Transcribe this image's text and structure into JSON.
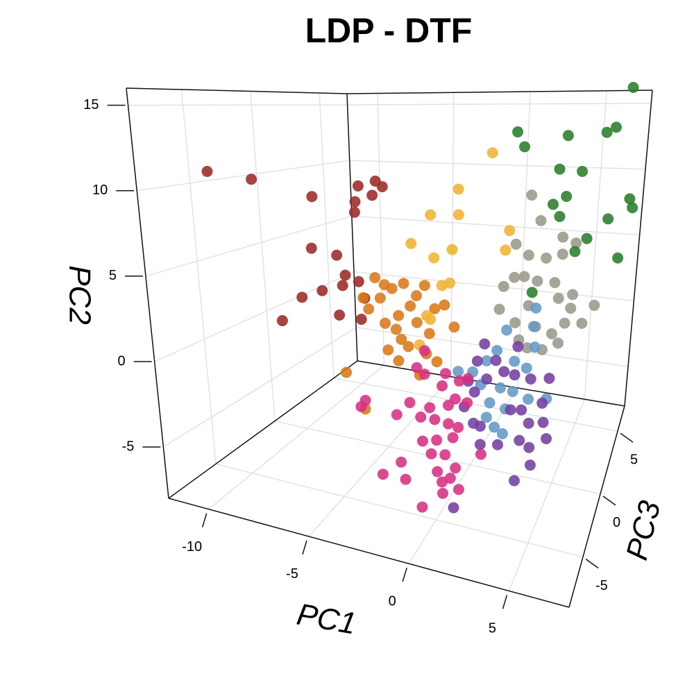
{
  "chart_data": {
    "type": "scatter3d",
    "title": "LDP - DTF",
    "xlabel": "PC1",
    "ylabel": "PC2",
    "zlabel": "PC3",
    "xlim": [
      -12,
      8
    ],
    "ylim": [
      -8,
      16
    ],
    "zlim": [
      -9,
      7
    ],
    "xticks": [
      -10,
      -5,
      0,
      5
    ],
    "yticks": [
      -5,
      0,
      5,
      10,
      15
    ],
    "zticks": [
      -5,
      0,
      5
    ],
    "grid": true,
    "series": [
      {
        "color": "#9b2a27",
        "x": [
          -10.7,
          -8.9,
          -6.4,
          -4.5,
          -3.8,
          -3.5,
          -4.6,
          -3.9,
          -4.6,
          -6.4,
          -5.3,
          -4.9,
          -5.0,
          -4.3,
          -5.9,
          -6.8,
          -7.7,
          -5.1,
          -4.1,
          -4.0
        ],
        "y": [
          10.9,
          10.5,
          9.6,
          10.3,
          10.6,
          10.3,
          9.4,
          9.8,
          8.8,
          6.6,
          6.3,
          5.2,
          4.6,
          4.9,
          4.2,
          3.7,
          2.2,
          2.9,
          2.8,
          4.0
        ],
        "z": [
          -6,
          -6,
          -6,
          -6,
          -6,
          -6,
          -6,
          -6,
          -6,
          -6,
          -6,
          -6,
          -6,
          -6,
          -6,
          -6,
          -6,
          -6,
          -6,
          -6
        ]
      },
      {
        "color": "#d9791a",
        "x": [
          -6.1,
          -5.8,
          -5.2,
          -4.6,
          -4.0,
          -3.3,
          -2.9,
          -3.6,
          -4.2,
          -4.9,
          -4.3,
          -3.2,
          -2.3,
          -1.8,
          -1.2,
          -2.5,
          -4.0,
          -4.7,
          -4.1,
          -2.6,
          -2.0,
          -3.6,
          -5.5,
          -7.0,
          -5.9,
          -2.9,
          -5.0
        ],
        "y": [
          2.2,
          1.5,
          2.3,
          3.0,
          3.4,
          2.7,
          3.4,
          2.0,
          1.3,
          0.7,
          0.4,
          1.0,
          2.0,
          2.3,
          1.0,
          0.4,
          -0.2,
          -1.0,
          -1.6,
          -0.9,
          -1.3,
          -0.6,
          3.6,
          -2.9,
          -5.1,
          -2.3,
          3.2
        ],
        "z": [
          -1,
          -1,
          -1,
          -1,
          -1,
          -1,
          -1,
          -1,
          -1,
          -1,
          -1,
          -1,
          -1,
          -1,
          -1,
          -1,
          -1,
          -1,
          -1,
          -1,
          -1,
          -1,
          -1,
          -1,
          -1,
          -1,
          -1
        ]
      },
      {
        "color": "#f0b332",
        "x": [
          0.0,
          -1.5,
          -2.8,
          -1.4,
          -1.6,
          -3.7,
          1.2,
          -2.0,
          -1.6,
          -2.5,
          -3.0,
          1.1,
          -2.5,
          -2.7
        ],
        "y": [
          11.9,
          9.6,
          7.9,
          8.0,
          5.8,
          6.0,
          7.2,
          3.5,
          3.7,
          1.3,
          -0.4,
          6.0,
          5.2,
          1.5
        ],
        "z": [
          -1,
          -1,
          -1,
          -1,
          -1,
          -1,
          -1,
          -1,
          -1,
          -1,
          -1,
          -1,
          -1,
          -1
        ]
      },
      {
        "color": "#9a988a",
        "x": [
          1.6,
          2.3,
          3.2,
          4.0,
          4.6,
          3.9,
          2.1,
          2.7,
          1.7,
          2.2,
          2.9,
          3.8,
          4.8,
          6.0,
          1.2,
          1.1,
          2.0,
          3.1,
          4.0,
          4.6,
          5.5,
          2.8,
          3.6,
          4.4,
          2.3,
          4.1,
          4.8,
          2.6
        ],
        "y": [
          6.4,
          5.8,
          5.7,
          6.0,
          6.7,
          7.0,
          9.4,
          7.9,
          4.4,
          4.5,
          4.3,
          4.3,
          3.7,
          3.2,
          3.8,
          2.4,
          1.7,
          1.6,
          1.3,
          2.0,
          2.1,
          0.3,
          0.3,
          0.8,
          0.7,
          3.4,
          2.9,
          2.8
        ],
        "z": [
          -1,
          -1,
          -1,
          -1,
          -1,
          -1,
          -1,
          -1,
          -1,
          -1,
          -1,
          -1,
          -1,
          -1,
          -1,
          -1,
          -1,
          -1,
          -1,
          -1,
          -1,
          -1,
          -1,
          -1,
          -1,
          -1,
          -1,
          -1
        ]
      },
      {
        "color": "#2a7d2a",
        "x": [
          6.2,
          5.7,
          5.3,
          3.5,
          1.1,
          1.5,
          3.3,
          4.4,
          3.2,
          3.8,
          6.9,
          7.1,
          6.0,
          3.6,
          5.1,
          6.8,
          4.6,
          2.7
        ],
        "y": [
          15.8,
          13.5,
          13.2,
          13.0,
          13.2,
          12.3,
          11.0,
          10.9,
          8.9,
          9.4,
          9.4,
          8.9,
          8.2,
          8.2,
          7.0,
          6.0,
          6.2,
          3.6
        ],
        "z": [
          -1,
          -1,
          -1,
          -1,
          -1,
          -1,
          -1,
          -1,
          -1,
          -1,
          -1,
          -1,
          -1,
          -1,
          -1,
          -1,
          -1,
          -1
        ]
      },
      {
        "color": "#6498c6",
        "x": [
          3.0,
          3.0,
          1.6,
          1.2,
          2.2,
          2.9,
          0.7,
          0.0,
          -0.8,
          0.5,
          1.6,
          1.1,
          2.0,
          2.3,
          4.2,
          3.2,
          1.5,
          2.0,
          1.0,
          3.2
        ],
        "y": [
          2.7,
          1.6,
          1.2,
          -0.1,
          -0.6,
          -0.9,
          -0.8,
          -1.6,
          -1.7,
          -2.3,
          -2.3,
          -3.3,
          -3.5,
          -2.4,
          -2.5,
          -2.7,
          -4.7,
          -5.0,
          -4.2,
          0.4
        ],
        "z": [
          -1,
          -1,
          -1,
          -1,
          -1,
          -1,
          -1,
          -1,
          -1,
          -1,
          -1,
          -1,
          -1,
          -1,
          -1,
          -1,
          -1,
          -1,
          -1,
          -1
        ]
      },
      {
        "color": "#7340a0",
        "x": [
          0.2,
          1.2,
          1.7,
          0.8,
          0.2,
          -0.3,
          0.7,
          2.3,
          2.3,
          3.2,
          4.2,
          2.9,
          2.3,
          4.0,
          3.4,
          4.2,
          4.5,
          3.0,
          3.6,
          1.8,
          0.8,
          3.8,
          3.0,
          0.3,
          1.1,
          -0.2,
          0.5
        ],
        "y": [
          -0.9,
          -0.7,
          -1.3,
          -1.9,
          -2.8,
          -3.8,
          -4.8,
          0.3,
          -1.4,
          -1.5,
          -1.3,
          -3.4,
          -3.5,
          -2.8,
          -4.1,
          -3.9,
          -4.8,
          -5.2,
          -5.5,
          -5.7,
          -5.9,
          -6.5,
          -7.6,
          -4.7,
          -6.5,
          -2.2,
          0.2
        ],
        "z": [
          -1,
          -1,
          -1,
          -1,
          -1,
          -1,
          -1,
          -1,
          -1,
          -1,
          -1,
          -1,
          -1,
          -1,
          -1,
          -1,
          -1,
          -1,
          -1,
          -1,
          -1,
          -1,
          -1,
          -1,
          -6,
          -1,
          -1
        ]
      },
      {
        "color": "#d63182",
        "x": [
          -4.1,
          -4.3,
          -1.4,
          -1.7,
          -0.3,
          0.4,
          0.8,
          0.3,
          0.9,
          0.0,
          -0.9,
          -1.9,
          -2.5,
          -1.3,
          -0.6,
          0.1,
          0.6,
          -1.1,
          -0.4,
          0.4,
          -0.6,
          0.1,
          -0.2,
          0.7,
          0.5,
          1.0,
          0.2,
          0.1,
          -2.1,
          -1.8,
          -3.0,
          -0.8,
          1.9,
          -1.3,
          -0.4
        ],
        "y": [
          -2.2,
          -2.6,
          1.1,
          0.1,
          0.0,
          -0.3,
          -0.1,
          -1.3,
          -1.4,
          -1.7,
          -2.0,
          -1.9,
          -2.7,
          -2.6,
          -2.6,
          -2.7,
          -2.8,
          -3.9,
          -3.7,
          -3.4,
          -4.5,
          -4.4,
          -5.4,
          -5.0,
          -5.6,
          -6.1,
          -6.5,
          -5.9,
          -5.3,
          -6.2,
          -6.2,
          -7.5,
          -4.0,
          -0.2,
          -0.7
        ],
        "z": [
          -5,
          -5,
          -5,
          -5,
          -5,
          -5,
          -5,
          -5,
          -5,
          -5,
          -5,
          -5,
          -5,
          -5,
          -5,
          -5,
          -5,
          -5,
          -5,
          -5,
          -5,
          -5,
          -5,
          -5,
          -5,
          -5,
          -5,
          -5,
          -5,
          -5,
          -5,
          -5,
          -5,
          -5,
          -5
        ]
      }
    ]
  }
}
